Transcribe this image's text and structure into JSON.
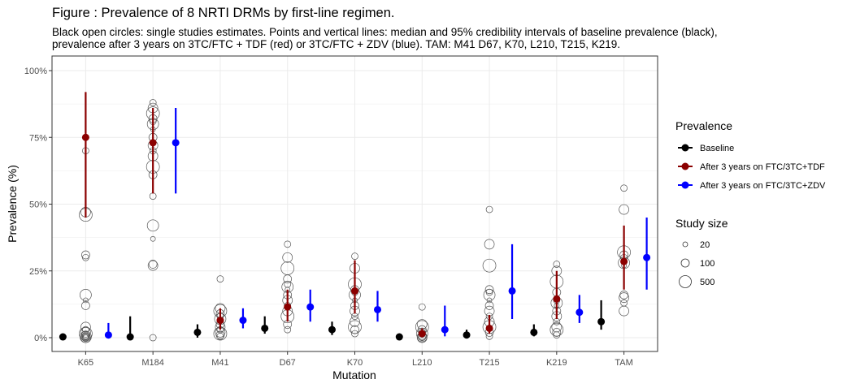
{
  "title": "Figure : Prevalence of 8 NRTI DRMs by first-line regimen.",
  "subtitle_line1": "Black open circles: single studies estimates. Points and vertical lines: median and 95% credibility intervals of baseline prevalence (black),",
  "subtitle_line2": "prevalence after 3 years on 3TC/FTC + TDF (red) or 3TC/FTC + ZDV (blue). TAM: M41 D67, K70, L210, T215, K219.",
  "chart_data": {
    "type": "scatter",
    "xlabel": "Mutation",
    "ylabel": "Prevalence (%)",
    "ylim": [
      0,
      100
    ],
    "y_ticks": [
      0,
      25,
      50,
      75,
      100
    ],
    "y_tick_labels": [
      "0%",
      "25%",
      "50%",
      "75%",
      "100%"
    ],
    "grid": true,
    "categories": [
      "K65",
      "M184",
      "M41",
      "D67",
      "K70",
      "L210",
      "T215",
      "K219",
      "TAM"
    ],
    "series": [
      {
        "name": "Baseline",
        "color": "#000000",
        "median": [
          0.3,
          0.3,
          2.0,
          3.5,
          3.0,
          0.3,
          1.0,
          2.0,
          6.0
        ],
        "lower": [
          0,
          0,
          0,
          1.5,
          1.0,
          0,
          0,
          0.5,
          3.0
        ],
        "upper": [
          1.5,
          8.0,
          5.0,
          8.0,
          6.0,
          1.5,
          3.0,
          5.0,
          14.0
        ]
      },
      {
        "name": "After 3 years on FTC/3TC+TDF",
        "color": "#8b0000",
        "median": [
          75.0,
          73.0,
          6.5,
          11.5,
          17.5,
          1.5,
          3.5,
          14.5,
          28.5
        ],
        "lower": [
          45.0,
          54.0,
          3.0,
          6.0,
          9.0,
          0.3,
          1.5,
          7.0,
          18.0
        ],
        "upper": [
          92.0,
          86.0,
          11.0,
          18.0,
          29.0,
          3.5,
          8.5,
          25.0,
          42.0
        ]
      },
      {
        "name": "After 3 years on FTC/3TC+ZDV",
        "color": "#0000ff",
        "median": [
          1.0,
          73.0,
          6.5,
          11.5,
          10.5,
          3.0,
          17.5,
          9.5,
          30.0
        ],
        "lower": [
          0.2,
          54.0,
          3.5,
          6.0,
          6.0,
          0.5,
          7.0,
          5.5,
          18.0
        ],
        "upper": [
          5.5,
          86.0,
          11.0,
          18.0,
          17.5,
          12.0,
          35.0,
          16.0,
          45.0
        ]
      }
    ],
    "study_estimates": [
      {
        "category": "K65",
        "values": [
          70,
          47,
          46,
          31,
          30,
          16,
          14,
          12,
          4,
          3,
          2,
          1.5,
          1,
          0.5,
          0.3,
          0.2,
          0.1,
          0,
          0
        ]
      },
      {
        "category": "M184",
        "values": [
          88,
          86,
          84,
          82,
          81,
          80,
          78,
          75,
          72,
          70,
          68,
          64,
          61,
          53,
          42,
          37,
          27.5,
          27,
          0
        ]
      },
      {
        "category": "M41",
        "values": [
          22,
          11,
          10,
          9,
          8,
          7,
          6,
          5,
          4,
          3,
          2,
          1.5,
          1,
          0.5
        ]
      },
      {
        "category": "D67",
        "values": [
          35,
          30,
          26,
          22,
          20,
          19,
          18,
          16,
          14,
          12,
          10,
          8,
          5,
          3
        ]
      },
      {
        "category": "K70",
        "values": [
          30.5,
          26,
          20,
          18,
          17,
          16,
          14,
          12,
          10,
          8,
          6,
          4,
          3,
          1.5
        ]
      },
      {
        "category": "L210",
        "values": [
          11.5,
          5,
          4,
          3,
          2,
          1.5,
          1,
          0.5,
          0.3,
          0.1,
          0
        ]
      },
      {
        "category": "T215",
        "values": [
          48,
          35,
          27,
          18,
          17,
          16,
          14,
          12,
          10,
          8,
          6,
          4,
          2,
          0.5
        ]
      },
      {
        "category": "K219",
        "values": [
          27.5,
          25,
          21,
          17,
          14,
          13,
          12,
          10,
          8,
          6,
          4,
          3,
          2,
          1
        ]
      },
      {
        "category": "TAM",
        "values": [
          56,
          48,
          32,
          31,
          30,
          28,
          27,
          16,
          15,
          13,
          10
        ]
      }
    ],
    "legend": {
      "title": "Prevalence",
      "position": "right",
      "size_title": "Study size",
      "size_values": [
        "20",
        "100",
        "500"
      ]
    }
  }
}
